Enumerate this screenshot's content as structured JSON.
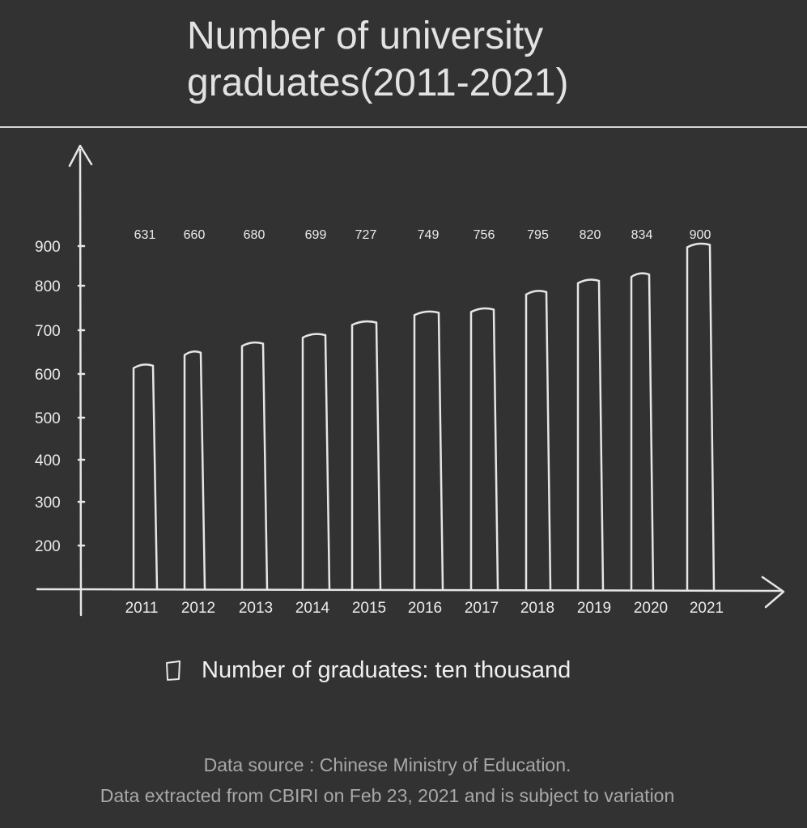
{
  "chart_data": {
    "type": "bar",
    "title_lines": [
      "Number of university",
      "graduates(2011-2021)"
    ],
    "categories": [
      "2011",
      "2012",
      "2013",
      "2014",
      "2015",
      "2016",
      "2017",
      "2018",
      "2019",
      "2020",
      "2021"
    ],
    "series": [
      {
        "name": "Number of graduates: ten thousand",
        "values": [
          631,
          660,
          680,
          699,
          727,
          749,
          756,
          795,
          820,
          834,
          900
        ]
      }
    ],
    "y_ticks": [
      "200",
      "300",
      "400",
      "500",
      "600",
      "700",
      "800",
      "900"
    ],
    "grid": false,
    "legend_position": "bottom",
    "colors": {
      "background": "#323232",
      "stroke": "#e6e6e6"
    }
  },
  "source": {
    "line1": "Data source : Chinese Ministry of Education.",
    "line2": "Data extracted from CBIRI on Feb 23, 2021 and is subject to variation"
  }
}
